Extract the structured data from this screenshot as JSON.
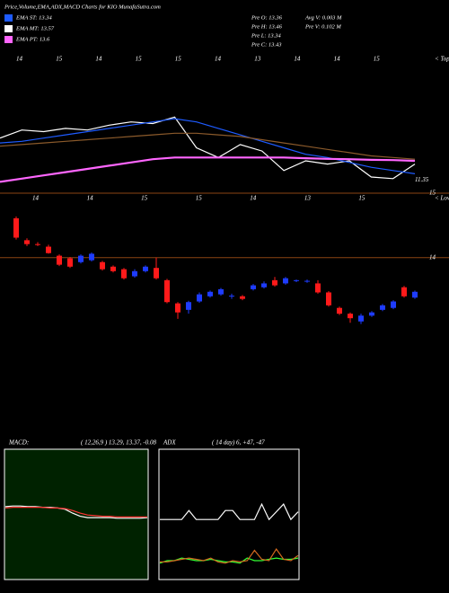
{
  "header": {
    "title": "Price,Volume,EMA,ADX,MACD Charts for KIO MunafaSutra.com",
    "legend": [
      {
        "label": "EMA ST: 13.34",
        "color": "#1e5bff"
      },
      {
        "label": "EMA MT: 13.57",
        "color": "#ffffff"
      },
      {
        "label": "EMA PT: 13.6",
        "color": "#ff66ff"
      }
    ],
    "stats": [
      "Pre  O: 13.36",
      "Pre  H: 13.46",
      "Pre  L: 13.34",
      "Pre  C: 13.43",
      "Avg  V: 0.003 M",
      "Pre  V: 0.102 M"
    ]
  },
  "chart_data": [
    {
      "type": "line",
      "date_labels": [
        "14",
        "15",
        "14",
        "15",
        "15",
        "14",
        "13",
        "14",
        "14",
        "15"
      ],
      "corner_label": "< Topa",
      "ylim": [
        11,
        15.3
      ],
      "yticks": [
        11.35
      ],
      "series": [
        {
          "color": "#ffffff",
          "values": [
            12.7,
            12.95,
            12.9,
            13.0,
            12.95,
            13.1,
            13.2,
            13.15,
            13.35,
            12.4,
            12.1,
            12.5,
            12.3,
            11.7,
            12.0,
            11.9,
            12.0,
            11.5,
            11.45,
            11.9
          ]
        },
        {
          "color": "#1e5bff",
          "values": [
            12.55,
            12.6,
            12.7,
            12.8,
            12.9,
            13.0,
            13.1,
            13.2,
            13.3,
            13.2,
            13.0,
            12.8,
            12.6,
            12.4,
            12.2,
            12.1,
            11.95,
            11.8,
            11.7,
            11.6
          ]
        },
        {
          "color": "#8b5a2b",
          "values": [
            12.45,
            12.5,
            12.55,
            12.6,
            12.65,
            12.7,
            12.75,
            12.8,
            12.85,
            12.85,
            12.8,
            12.75,
            12.65,
            12.55,
            12.45,
            12.35,
            12.25,
            12.15,
            12.1,
            12.05
          ]
        },
        {
          "color": "#ff66ff",
          "values": [
            11.35,
            11.45,
            11.55,
            11.65,
            11.75,
            11.85,
            11.95,
            12.05,
            12.1,
            12.1,
            12.1,
            12.1,
            12.1,
            12.1,
            12.08,
            12.06,
            12.05,
            12.03,
            12.02,
            12.0
          ]
        }
      ]
    },
    {
      "type": "candlestick",
      "date_labels": [
        "14",
        "14",
        "15",
        "15",
        "14",
        "13",
        "15"
      ],
      "corner_label": "< Lowe",
      "ylim": [
        12.7,
        15
      ],
      "yticks": [
        15,
        14
      ],
      "up_color": "#1e3cff",
      "down_color": "#ff1a1a",
      "open": [
        14.61,
        14.27,
        14.21,
        14.17,
        14.03,
        13.99,
        13.93,
        13.96,
        13.93,
        13.86,
        13.82,
        13.71,
        13.79,
        13.84,
        13.65,
        13.29,
        13.19,
        13.32,
        13.4,
        13.43,
        13.4,
        13.4,
        13.51,
        13.54,
        13.65,
        13.6,
        13.64,
        13.63,
        13.6,
        13.46,
        13.22,
        13.13,
        13.01,
        13.1,
        13.19,
        13.22,
        13.54,
        13.38
      ],
      "high": [
        14.64,
        14.3,
        14.24,
        14.2,
        14.05,
        14.01,
        14.05,
        14.08,
        13.95,
        13.88,
        13.84,
        13.82,
        13.88,
        14.0,
        13.67,
        13.31,
        13.33,
        13.46,
        13.49,
        13.53,
        13.44,
        13.42,
        13.59,
        13.63,
        13.7,
        13.7,
        13.66,
        13.66,
        13.65,
        13.48,
        13.24,
        13.15,
        13.13,
        13.17,
        13.28,
        13.34,
        13.56,
        13.49
      ],
      "low": [
        14.28,
        14.18,
        14.18,
        14.06,
        13.87,
        13.84,
        13.91,
        13.94,
        13.8,
        13.77,
        13.66,
        13.69,
        13.77,
        13.66,
        13.29,
        13.05,
        13.13,
        13.3,
        13.38,
        13.41,
        13.36,
        13.34,
        13.49,
        13.52,
        13.55,
        13.58,
        13.62,
        13.61,
        13.44,
        13.24,
        13.11,
        12.99,
        12.97,
        13.08,
        13.17,
        13.2,
        13.38,
        13.36
      ],
      "close": [
        14.31,
        14.21,
        14.2,
        14.07,
        13.89,
        13.86,
        14.03,
        14.06,
        13.82,
        13.79,
        13.68,
        13.79,
        13.86,
        13.68,
        13.31,
        13.15,
        13.31,
        13.43,
        13.47,
        13.51,
        13.41,
        13.36,
        13.57,
        13.6,
        13.57,
        13.68,
        13.65,
        13.64,
        13.46,
        13.26,
        13.13,
        13.06,
        13.1,
        13.15,
        13.26,
        13.32,
        13.4,
        13.47
      ]
    },
    {
      "type": "line",
      "title": "MACD:",
      "subtitle": "( 12,26,9 ) 13.29, 13.37, -0.08",
      "background": "#002200",
      "ylim": [
        -1,
        1
      ],
      "series": [
        {
          "color": "#ffffff",
          "values": [
            0.12,
            0.13,
            0.13,
            0.12,
            0.12,
            0.11,
            0.11,
            0.1,
            0.08,
            0.02,
            -0.03,
            -0.05,
            -0.05,
            -0.05,
            -0.05,
            -0.06,
            -0.06,
            -0.06,
            -0.06,
            -0.05
          ]
        },
        {
          "color": "#ff3333",
          "values": [
            0.1,
            0.11,
            0.11,
            0.11,
            0.11,
            0.11,
            0.1,
            0.1,
            0.09,
            0.06,
            0.02,
            -0.01,
            -0.02,
            -0.03,
            -0.03,
            -0.04,
            -0.04,
            -0.04,
            -0.04,
            -0.04
          ]
        }
      ]
    },
    {
      "type": "line",
      "title": "ADX",
      "subtitle": "( 14 day) 6, +47, -47",
      "background": "#000000",
      "ylim": [
        0,
        100
      ],
      "series": [
        {
          "color": "#ffffff",
          "values": [
            46,
            46,
            46,
            46,
            53,
            46,
            46,
            46,
            46,
            53,
            53,
            46,
            46,
            46,
            58,
            46,
            52,
            58,
            46,
            52
          ]
        },
        {
          "color": "#33ff33",
          "values": [
            12,
            14,
            14,
            16,
            15,
            14,
            14,
            15,
            14,
            13,
            13,
            12,
            16,
            14,
            14,
            15,
            16,
            15,
            15,
            16
          ]
        },
        {
          "color": "#d2691e",
          "values": [
            13,
            13,
            14,
            15,
            16,
            15,
            14,
            16,
            13,
            12,
            14,
            13,
            14,
            22,
            15,
            14,
            23,
            15,
            14,
            18
          ]
        }
      ]
    }
  ]
}
